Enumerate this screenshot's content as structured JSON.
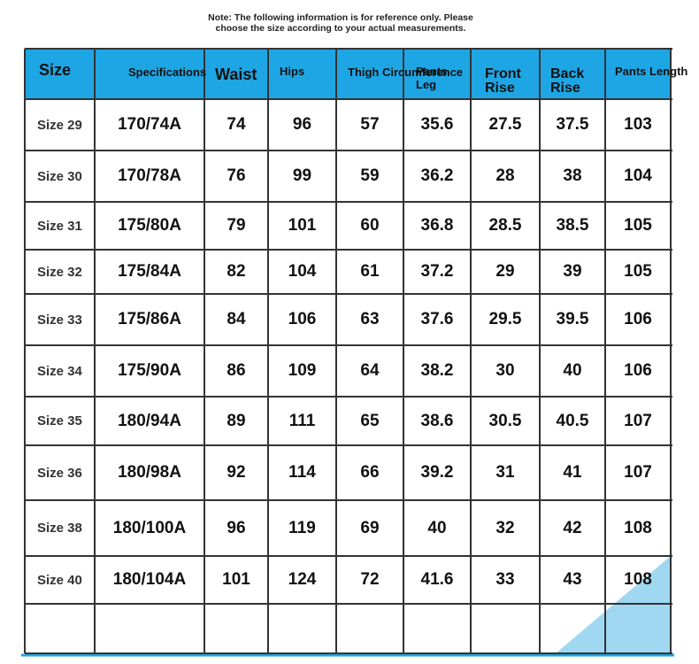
{
  "note": [
    "Note: The following information is for reference only. Please",
    "choose the size according to your actual measurements."
  ],
  "table": {
    "header": [
      "Size",
      "Specifications",
      "Waist",
      "Hips",
      "Thigh Circumference",
      "Pants Leg",
      "Front Rise",
      "Back Rise",
      "Pants Length"
    ],
    "rows": [
      [
        "Size 29",
        "170/74A",
        74,
        96,
        57,
        35.6,
        27.5,
        37.5,
        103
      ],
      [
        "Size 30",
        "170/78A",
        76,
        99,
        59,
        36.2,
        28,
        38,
        104
      ],
      [
        "Size 31",
        "175/80A",
        79,
        101,
        60,
        36.8,
        28.5,
        38.5,
        105
      ],
      [
        "Size 32",
        "175/84A",
        82,
        104,
        61,
        37.2,
        29,
        39,
        105
      ],
      [
        "Size 33",
        "175/86A",
        84,
        106,
        63,
        37.6,
        29.5,
        39.5,
        106
      ],
      [
        "Size 34",
        "175/90A",
        86,
        109,
        64,
        38.2,
        30,
        40,
        106
      ],
      [
        "Size 35",
        "180/94A",
        89,
        111,
        65,
        38.6,
        30.5,
        40.5,
        107
      ],
      [
        "Size 36",
        "180/98A",
        92,
        114,
        66,
        39.2,
        31,
        41,
        107
      ],
      [
        "Size 38",
        "180/100A",
        96,
        119,
        69,
        40,
        32,
        42,
        108
      ],
      [
        "Size 40",
        "180/104A",
        101,
        124,
        72,
        41.6,
        33,
        43,
        108
      ]
    ]
  }
}
